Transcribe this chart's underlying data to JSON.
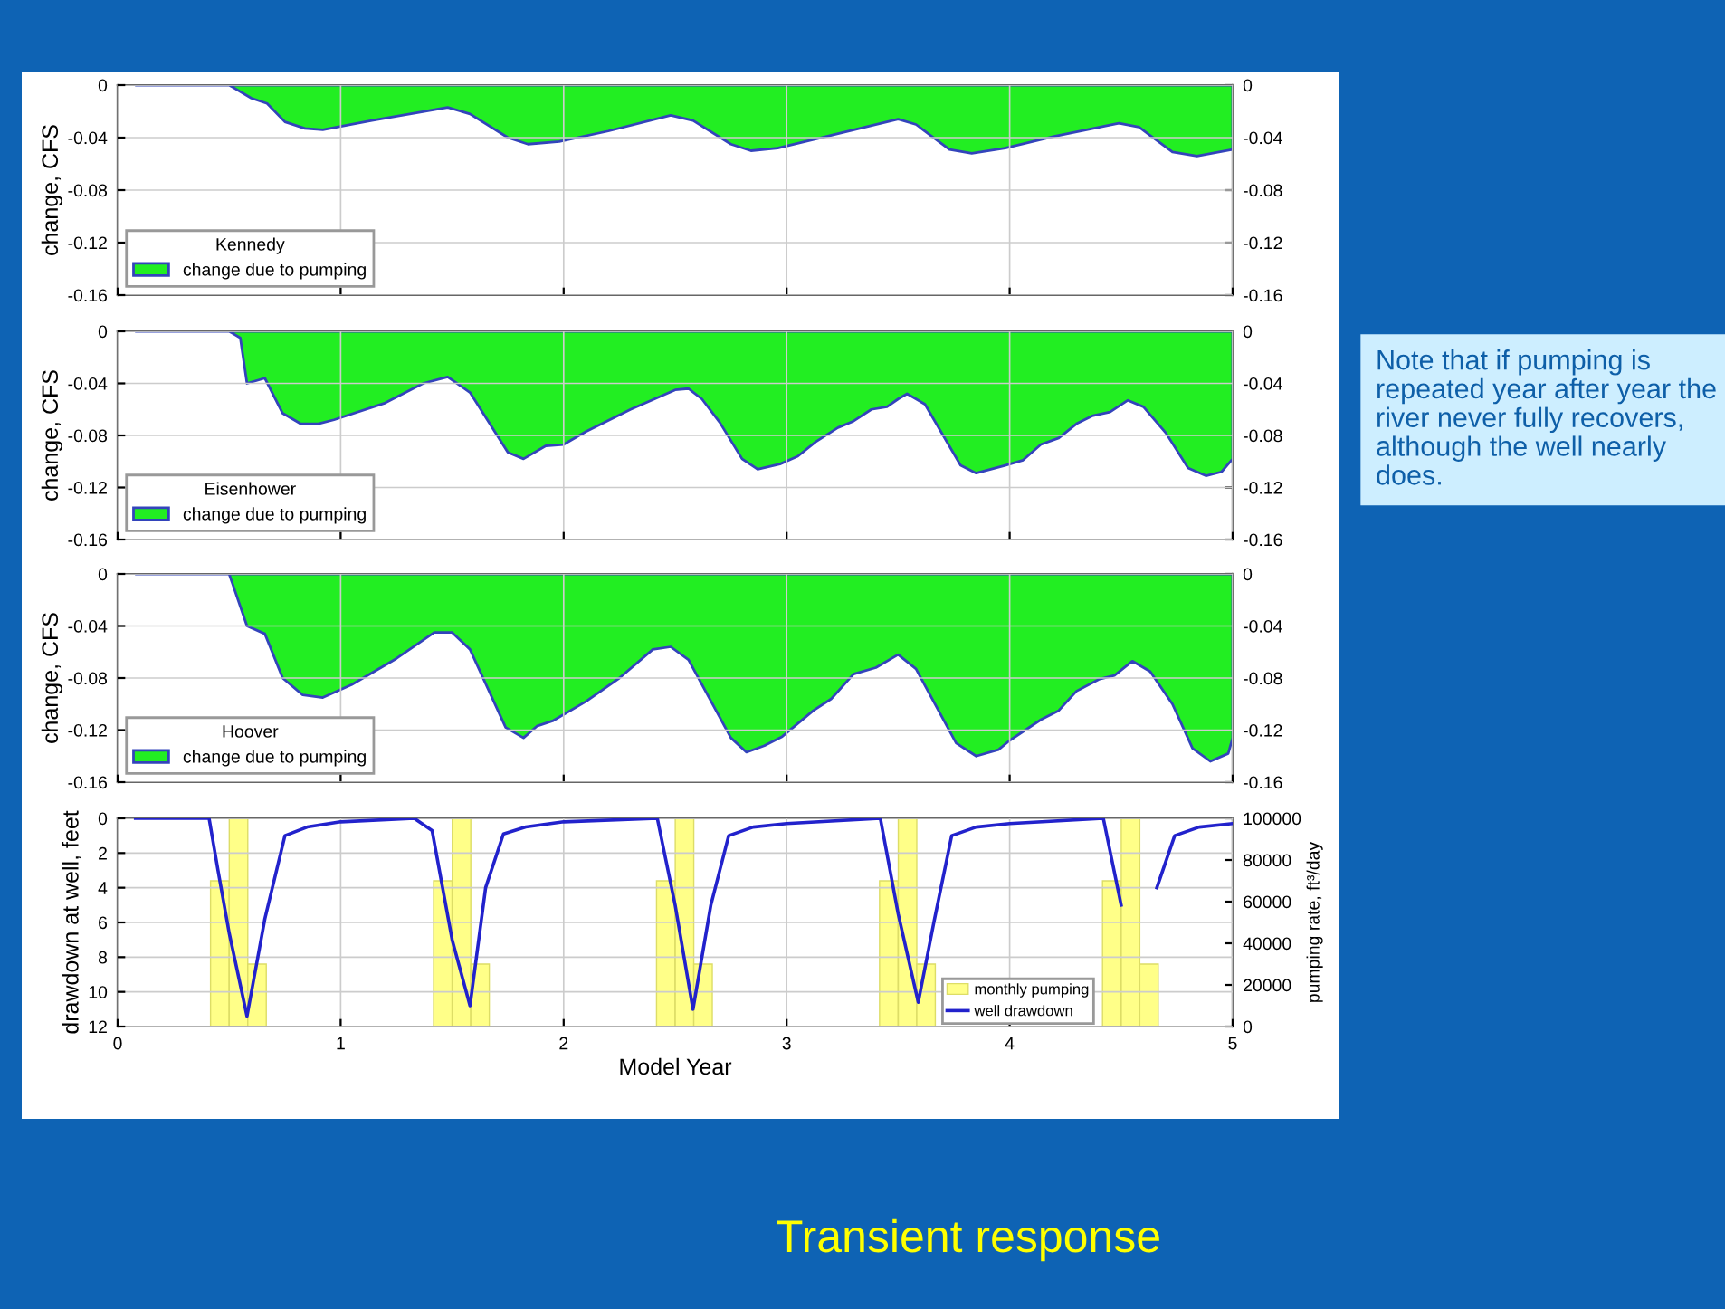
{
  "chart_data": [
    {
      "type": "area",
      "ylabel": "change, CFS",
      "legend_title": "Kennedy",
      "legend": "bottom left",
      "grid": true,
      "tick_labels": "y",
      "xlim": [
        0,
        5
      ],
      "xticks": [
        0,
        1,
        2,
        3,
        4,
        5
      ],
      "ylim": [
        -0.16,
        0
      ],
      "yticks": [
        -0.16,
        -0.12,
        -0.08,
        -0.04,
        0
      ],
      "y2lim": [
        -0.16,
        0
      ],
      "y2ticks": [
        -0.16,
        -0.12,
        -0.08,
        -0.04,
        0
      ],
      "series": [
        {
          "name": "change due to pumping",
          "color": "#22ee22",
          "x": [
            0.08,
            0.5,
            0.6,
            0.67,
            0.75,
            0.84,
            0.92,
            1.14,
            1.48,
            1.58,
            1.75,
            1.84,
            1.98,
            2.2,
            2.48,
            2.58,
            2.75,
            2.84,
            2.96,
            3.18,
            3.5,
            3.58,
            3.73,
            3.83,
            3.98,
            4.2,
            4.49,
            4.58,
            4.73,
            4.84,
            5
          ],
          "values": [
            0,
            0,
            -0.01,
            -0.014,
            -0.028,
            -0.033,
            -0.034,
            -0.027,
            -0.017,
            -0.022,
            -0.04,
            -0.045,
            -0.043,
            -0.035,
            -0.023,
            -0.027,
            -0.045,
            -0.05,
            -0.048,
            -0.039,
            -0.026,
            -0.03,
            -0.049,
            -0.052,
            -0.048,
            -0.039,
            -0.029,
            -0.032,
            -0.051,
            -0.054,
            -0.049
          ]
        }
      ]
    },
    {
      "type": "area",
      "ylabel": "change, CFS",
      "legend_title": "Eisenhower",
      "legend": "bottom left",
      "grid": true,
      "tick_labels": "y",
      "xlim": [
        0,
        5
      ],
      "xticks": [
        0,
        1,
        2,
        3,
        4,
        5
      ],
      "ylim": [
        -0.16,
        0
      ],
      "yticks": [
        -0.16,
        -0.12,
        -0.08,
        -0.04,
        0
      ],
      "y2lim": [
        -0.16,
        0
      ],
      "y2ticks": [
        -0.16,
        -0.12,
        -0.08,
        -0.04,
        0
      ],
      "series": [
        {
          "name": "change due to pumping",
          "color": "#22ee22",
          "x": [
            0.08,
            0.5,
            0.55,
            0.58,
            0.66,
            0.74,
            0.82,
            0.9,
            0.97,
            1.2,
            1.37,
            1.48,
            1.58,
            1.75,
            1.82,
            1.92,
            2.0,
            2.1,
            2.3,
            2.5,
            2.56,
            2.62,
            2.7,
            2.8,
            2.87,
            2.97,
            3.05,
            3.13,
            3.23,
            3.3,
            3.38,
            3.45,
            3.5,
            3.54,
            3.62,
            3.78,
            3.85,
            3.98,
            4.06,
            4.14,
            4.22,
            4.3,
            4.37,
            4.45,
            4.53,
            4.6,
            4.7,
            4.8,
            4.88,
            4.95,
            5
          ],
          "values": [
            0,
            0,
            -0.005,
            -0.04,
            -0.036,
            -0.063,
            -0.071,
            -0.071,
            -0.068,
            -0.055,
            -0.04,
            -0.035,
            -0.047,
            -0.093,
            -0.098,
            -0.088,
            -0.087,
            -0.077,
            -0.06,
            -0.045,
            -0.044,
            -0.052,
            -0.07,
            -0.098,
            -0.106,
            -0.102,
            -0.096,
            -0.085,
            -0.074,
            -0.069,
            -0.06,
            -0.058,
            -0.052,
            -0.048,
            -0.056,
            -0.103,
            -0.109,
            -0.103,
            -0.099,
            -0.087,
            -0.082,
            -0.071,
            -0.065,
            -0.062,
            -0.053,
            -0.058,
            -0.078,
            -0.105,
            -0.111,
            -0.108,
            -0.098
          ]
        }
      ]
    },
    {
      "type": "area",
      "ylabel": "change, CFS",
      "legend_title": "Hoover",
      "legend": "bottom left",
      "grid": true,
      "tick_labels": "y",
      "xlim": [
        0,
        5
      ],
      "xticks": [
        0,
        1,
        2,
        3,
        4,
        5
      ],
      "ylim": [
        -0.16,
        0
      ],
      "yticks": [
        -0.16,
        -0.12,
        -0.08,
        -0.04,
        0
      ],
      "y2lim": [
        -0.16,
        0
      ],
      "y2ticks": [
        -0.16,
        -0.12,
        -0.08,
        -0.04,
        0
      ],
      "series": [
        {
          "name": "change due to pumping",
          "color": "#22ee22",
          "x": [
            0.08,
            0.5,
            0.58,
            0.66,
            0.74,
            0.83,
            0.92,
            1.05,
            1.25,
            1.42,
            1.5,
            1.58,
            1.74,
            1.82,
            1.88,
            1.95,
            2.1,
            2.25,
            2.4,
            2.48,
            2.56,
            2.75,
            2.82,
            2.9,
            2.98,
            3.12,
            3.2,
            3.3,
            3.4,
            3.5,
            3.58,
            3.76,
            3.85,
            3.95,
            4.0,
            4.14,
            4.22,
            4.3,
            4.4,
            4.47,
            4.55,
            4.63,
            4.73,
            4.82,
            4.9,
            4.98,
            5
          ],
          "values": [
            0,
            0,
            -0.04,
            -0.046,
            -0.08,
            -0.093,
            -0.095,
            -0.085,
            -0.065,
            -0.045,
            -0.045,
            -0.058,
            -0.118,
            -0.126,
            -0.117,
            -0.113,
            -0.098,
            -0.08,
            -0.058,
            -0.056,
            -0.066,
            -0.126,
            -0.137,
            -0.132,
            -0.125,
            -0.105,
            -0.096,
            -0.077,
            -0.072,
            -0.062,
            -0.073,
            -0.13,
            -0.14,
            -0.135,
            -0.128,
            -0.112,
            -0.105,
            -0.09,
            -0.081,
            -0.078,
            -0.067,
            -0.075,
            -0.1,
            -0.134,
            -0.144,
            -0.138,
            -0.126
          ]
        }
      ]
    },
    {
      "type": "line",
      "xlabel": "Model Year",
      "ylabel": "drawdown at well, feet",
      "y2label": "pumping rate, ft³/day",
      "legend": "bottom right",
      "grid": true,
      "xlim": [
        0,
        5
      ],
      "xticks": [
        0,
        1,
        2,
        3,
        4,
        5
      ],
      "ylim": [
        12,
        0
      ],
      "yticks": [
        0,
        2,
        4,
        6,
        8,
        10,
        12
      ],
      "y2lim": [
        0,
        100000
      ],
      "y2ticks": [
        0,
        20000,
        40000,
        60000,
        80000,
        100000
      ],
      "annotations": [
        "Note that if pumping is repeated year after year the river never fully recovers, although the well nearly does.",
        "Transient response"
      ],
      "series": [
        {
          "name": "monthly pumping",
          "type": "bar",
          "axis": "y2",
          "color": "#ffff88",
          "x": [
            0.458,
            0.542,
            0.625,
            1.458,
            1.542,
            1.625,
            2.458,
            2.542,
            2.625,
            3.458,
            3.542,
            3.625,
            4.458,
            4.542,
            4.625
          ],
          "values": [
            70000,
            100000,
            30000,
            70000,
            100000,
            30000,
            70000,
            100000,
            30000,
            70000,
            100000,
            30000,
            70000,
            100000,
            30000
          ]
        },
        {
          "name": "well drawdown",
          "type": "line",
          "color": "#2222cc",
          "x": [
            0.08,
            0.41,
            0.45,
            0.5,
            0.58,
            0.66,
            0.75,
            0.85,
            1.0,
            1.33,
            1.41,
            1.5,
            1.58,
            1.65,
            1.73,
            1.83,
            2.0,
            2.42,
            2.5,
            2.58,
            2.66,
            2.74,
            2.85,
            3.0,
            3.42,
            3.5,
            3.59,
            3.66,
            3.74,
            3.85,
            4.0,
            4.42,
            4.5,
            4.58,
            4.66,
            4.74,
            4.85,
            5
          ],
          "values": [
            0,
            0,
            3,
            6.6,
            11.4,
            5.8,
            1.0,
            0.5,
            0.2,
            0,
            0.7,
            7,
            10.8,
            4,
            0.9,
            0.5,
            0.2,
            0,
            5,
            11,
            5,
            1,
            0.5,
            0.3,
            0,
            5.5,
            10.6,
            6,
            1,
            0.5,
            0.3,
            0,
            5,
            null,
            4,
            1,
            0.5,
            0.3
          ]
        }
      ]
    }
  ]
}
